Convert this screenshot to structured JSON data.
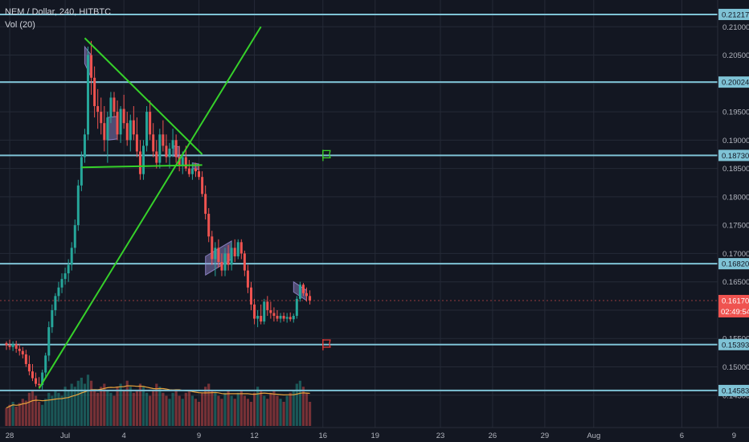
{
  "legend": {
    "title": "NEM / Dollar, 240, HITBTC",
    "volume": "Vol (20)"
  },
  "colors": {
    "background": "#131722",
    "grid": "#252a37",
    "up": "#26a69a",
    "down": "#ef5350",
    "hline": "#7fc3d6",
    "trend": "#36d12a",
    "box": "#9c8fd8",
    "ma": "#e8a33c",
    "price_tag": "#ef5350"
  },
  "chart_data": {
    "type": "candlestick",
    "symbol": "NEM / Dollar",
    "interval": "240",
    "exchange": "HITBTC",
    "y_axis": {
      "ylim": [
        0.1427,
        0.2133
      ],
      "ticks": [
        "0.21000",
        "0.20500",
        "0.20000",
        "0.19500",
        "0.19000",
        "0.18500",
        "0.18000",
        "0.17500",
        "0.17000",
        "0.16500",
        "0.16000",
        "0.15500",
        "0.15000",
        "0.14500"
      ]
    },
    "x_axis": {
      "ticks": [
        {
          "label": "28",
          "t": 1
        },
        {
          "label": "Jul",
          "t": 18
        },
        {
          "label": "4",
          "t": 36
        },
        {
          "label": "9",
          "t": 59
        },
        {
          "label": "12",
          "t": 76
        },
        {
          "label": "16",
          "t": 97
        },
        {
          "label": "19",
          "t": 113
        },
        {
          "label": "23",
          "t": 133
        },
        {
          "label": "26",
          "t": 149
        },
        {
          "label": "29",
          "t": 165
        },
        {
          "label": "Aug",
          "t": 180
        },
        {
          "label": "6",
          "t": 207
        },
        {
          "label": "9",
          "t": 223
        }
      ]
    },
    "horizontal_levels": [
      {
        "price": 0.21217,
        "label": "0.21217"
      },
      {
        "price": 0.20024,
        "label": "0.20024"
      },
      {
        "price": 0.1873,
        "label": "0.18730"
      },
      {
        "price": 0.1682,
        "label": "0.16820"
      },
      {
        "price": 0.15393,
        "label": "0.15393"
      },
      {
        "price": 0.14583,
        "label": "0.14583"
      }
    ],
    "current_price": {
      "value": 0.1617,
      "label": "0.16170",
      "countdown": "02:49:54"
    },
    "candles": [
      [
        0.1542,
        0.1545,
        0.153,
        0.1538
      ],
      [
        0.1538,
        0.1548,
        0.153,
        0.1535
      ],
      [
        0.1535,
        0.1545,
        0.1528,
        0.154
      ],
      [
        0.154,
        0.1546,
        0.1525,
        0.1532
      ],
      [
        0.1532,
        0.154,
        0.152,
        0.1528
      ],
      [
        0.1528,
        0.1535,
        0.1515,
        0.1522
      ],
      [
        0.1522,
        0.153,
        0.15,
        0.1505
      ],
      [
        0.1505,
        0.152,
        0.1485,
        0.1492
      ],
      [
        0.1492,
        0.1505,
        0.1475,
        0.148
      ],
      [
        0.148,
        0.149,
        0.1465,
        0.147
      ],
      [
        0.147,
        0.1482,
        0.1462,
        0.1468
      ],
      [
        0.1468,
        0.1495,
        0.146,
        0.149
      ],
      [
        0.149,
        0.1525,
        0.148,
        0.152
      ],
      [
        0.152,
        0.158,
        0.151,
        0.157
      ],
      [
        0.157,
        0.161,
        0.156,
        0.16
      ],
      [
        0.16,
        0.163,
        0.159,
        0.1625
      ],
      [
        0.1625,
        0.165,
        0.1615,
        0.164
      ],
      [
        0.164,
        0.1665,
        0.163,
        0.1655
      ],
      [
        0.1655,
        0.1675,
        0.1645,
        0.1665
      ],
      [
        0.1665,
        0.169,
        0.165,
        0.168
      ],
      [
        0.168,
        0.172,
        0.167,
        0.171
      ],
      [
        0.171,
        0.176,
        0.17,
        0.175
      ],
      [
        0.175,
        0.183,
        0.174,
        0.182
      ],
      [
        0.182,
        0.188,
        0.181,
        0.187
      ],
      [
        0.187,
        0.192,
        0.186,
        0.191
      ],
      [
        0.191,
        0.2065,
        0.19,
        0.205
      ],
      [
        0.205,
        0.2075,
        0.198,
        0.201
      ],
      [
        0.201,
        0.203,
        0.194,
        0.196
      ],
      [
        0.196,
        0.199,
        0.192,
        0.195
      ],
      [
        0.195,
        0.1975,
        0.191,
        0.193
      ],
      [
        0.193,
        0.196,
        0.188,
        0.19
      ],
      [
        0.19,
        0.195,
        0.186,
        0.194
      ],
      [
        0.194,
        0.1985,
        0.193,
        0.1975
      ],
      [
        0.1975,
        0.1985,
        0.194,
        0.195
      ],
      [
        0.195,
        0.197,
        0.19,
        0.191
      ],
      [
        0.191,
        0.196,
        0.1895,
        0.1955
      ],
      [
        0.1955,
        0.198,
        0.192,
        0.193
      ],
      [
        0.193,
        0.195,
        0.189,
        0.19
      ],
      [
        0.19,
        0.1945,
        0.188,
        0.1935
      ],
      [
        0.1935,
        0.196,
        0.19,
        0.191
      ],
      [
        0.191,
        0.194,
        0.187,
        0.188
      ],
      [
        0.188,
        0.19,
        0.183,
        0.184
      ],
      [
        0.184,
        0.19,
        0.183,
        0.189
      ],
      [
        0.189,
        0.196,
        0.188,
        0.195
      ],
      [
        0.195,
        0.197,
        0.19,
        0.191
      ],
      [
        0.191,
        0.193,
        0.187,
        0.188
      ],
      [
        0.188,
        0.19,
        0.185,
        0.186
      ],
      [
        0.186,
        0.192,
        0.185,
        0.191
      ],
      [
        0.191,
        0.1935,
        0.188,
        0.189
      ],
      [
        0.189,
        0.191,
        0.186,
        0.187
      ],
      [
        0.187,
        0.1895,
        0.185,
        0.1885
      ],
      [
        0.1885,
        0.192,
        0.187,
        0.19
      ],
      [
        0.19,
        0.191,
        0.186,
        0.187
      ],
      [
        0.187,
        0.189,
        0.1845,
        0.1855
      ],
      [
        0.1855,
        0.188,
        0.184,
        0.187
      ],
      [
        0.187,
        0.189,
        0.1845,
        0.185
      ],
      [
        0.185,
        0.1865,
        0.1835,
        0.184
      ],
      [
        0.184,
        0.186,
        0.183,
        0.185
      ],
      [
        0.185,
        0.186,
        0.1835,
        0.1845
      ],
      [
        0.1845,
        0.1855,
        0.183,
        0.1835
      ],
      [
        0.1835,
        0.1845,
        0.18,
        0.1805
      ],
      [
        0.1805,
        0.182,
        0.176,
        0.177
      ],
      [
        0.177,
        0.178,
        0.172,
        0.173
      ],
      [
        0.173,
        0.174,
        0.168,
        0.169
      ],
      [
        0.169,
        0.172,
        0.166,
        0.171
      ],
      [
        0.171,
        0.1725,
        0.1675,
        0.1685
      ],
      [
        0.1685,
        0.17,
        0.166,
        0.167
      ],
      [
        0.167,
        0.171,
        0.166,
        0.17
      ],
      [
        0.17,
        0.1715,
        0.167,
        0.168
      ],
      [
        0.168,
        0.172,
        0.167,
        0.171
      ],
      [
        0.171,
        0.1725,
        0.1685,
        0.1695
      ],
      [
        0.1695,
        0.1725,
        0.169,
        0.172
      ],
      [
        0.172,
        0.1725,
        0.169,
        0.17
      ],
      [
        0.17,
        0.1705,
        0.166,
        0.167
      ],
      [
        0.167,
        0.168,
        0.163,
        0.164
      ],
      [
        0.164,
        0.165,
        0.16,
        0.161
      ],
      [
        0.161,
        0.162,
        0.1575,
        0.1585
      ],
      [
        0.1585,
        0.16,
        0.157,
        0.159
      ],
      [
        0.159,
        0.161,
        0.1575,
        0.158
      ],
      [
        0.158,
        0.162,
        0.1575,
        0.1615
      ],
      [
        0.1615,
        0.1625,
        0.159,
        0.16
      ],
      [
        0.16,
        0.1615,
        0.1585,
        0.1595
      ],
      [
        0.1595,
        0.1605,
        0.158,
        0.159
      ],
      [
        0.159,
        0.16,
        0.158,
        0.1585
      ],
      [
        0.1585,
        0.1595,
        0.1578,
        0.159
      ],
      [
        0.159,
        0.1596,
        0.158,
        0.1585
      ],
      [
        0.1585,
        0.1595,
        0.1578,
        0.1588
      ],
      [
        0.1588,
        0.1596,
        0.158,
        0.1584
      ],
      [
        0.1584,
        0.1594,
        0.1578,
        0.159
      ],
      [
        0.159,
        0.1625,
        0.1585,
        0.162
      ],
      [
        0.162,
        0.165,
        0.1615,
        0.1645
      ],
      [
        0.1645,
        0.1648,
        0.1625,
        0.163
      ],
      [
        0.163,
        0.164,
        0.1615,
        0.1625
      ],
      [
        0.1625,
        0.1635,
        0.161,
        0.1617
      ]
    ],
    "volume": [
      0.3,
      0.35,
      0.4,
      0.32,
      0.38,
      0.45,
      0.42,
      0.55,
      0.6,
      0.5,
      0.4,
      0.35,
      0.45,
      0.55,
      0.5,
      0.6,
      0.55,
      0.5,
      0.65,
      0.6,
      0.7,
      0.65,
      0.75,
      0.8,
      0.7,
      0.85,
      0.75,
      0.6,
      0.55,
      0.65,
      0.7,
      0.6,
      0.55,
      0.5,
      0.65,
      0.7,
      0.6,
      0.75,
      0.65,
      0.55,
      0.6,
      0.7,
      0.65,
      0.55,
      0.5,
      0.6,
      0.7,
      0.65,
      0.55,
      0.5,
      0.45,
      0.55,
      0.6,
      0.5,
      0.45,
      0.55,
      0.6,
      0.5,
      0.45,
      0.4,
      0.55,
      0.65,
      0.7,
      0.6,
      0.55,
      0.5,
      0.45,
      0.55,
      0.6,
      0.5,
      0.45,
      0.55,
      0.6,
      0.5,
      0.45,
      0.4,
      0.55,
      0.65,
      0.6,
      0.5,
      0.45,
      0.55,
      0.6,
      0.5,
      0.45,
      0.4,
      0.5,
      0.55,
      0.6,
      0.7,
      0.75,
      0.65,
      0.55,
      0.4
    ],
    "annotations": {
      "trendlines": [
        {
          "t1": 24,
          "p1": 0.208,
          "t2": 60,
          "p2": 0.1875
        },
        {
          "t1": 10,
          "p1": 0.1462,
          "t2": 78,
          "p2": 0.21
        },
        {
          "t1": 23,
          "p1": 0.1852,
          "t2": 60,
          "p2": 0.1856
        }
      ],
      "boxes": [
        [
          {
            "t": 24,
            "p": 0.2065
          },
          {
            "t": 26,
            "p": 0.205
          },
          {
            "t": 26,
            "p": 0.201
          },
          {
            "t": 24,
            "p": 0.2035
          }
        ],
        [
          {
            "t": 31,
            "p": 0.194
          },
          {
            "t": 34,
            "p": 0.1942
          },
          {
            "t": 34,
            "p": 0.1902
          },
          {
            "t": 31,
            "p": 0.19
          }
        ],
        [
          {
            "t": 51,
            "p": 0.189
          },
          {
            "t": 53,
            "p": 0.1888
          },
          {
            "t": 53,
            "p": 0.187
          },
          {
            "t": 51,
            "p": 0.1872
          }
        ],
        [
          {
            "t": 57,
            "p": 0.186
          },
          {
            "t": 59,
            "p": 0.1858
          },
          {
            "t": 59,
            "p": 0.1848
          },
          {
            "t": 57,
            "p": 0.185
          }
        ],
        [
          {
            "t": 61,
            "p": 0.1695
          },
          {
            "t": 69,
            "p": 0.1722
          },
          {
            "t": 69,
            "p": 0.169
          },
          {
            "t": 61,
            "p": 0.1662
          }
        ],
        [
          {
            "t": 88,
            "p": 0.165
          },
          {
            "t": 92,
            "p": 0.1635
          },
          {
            "t": 92,
            "p": 0.1617
          },
          {
            "t": 88,
            "p": 0.1632
          }
        ]
      ],
      "flags": [
        {
          "t": 98,
          "p": 0.1873,
          "color": "green"
        },
        {
          "t": 98,
          "p": 0.1539,
          "color": "red"
        }
      ]
    }
  }
}
